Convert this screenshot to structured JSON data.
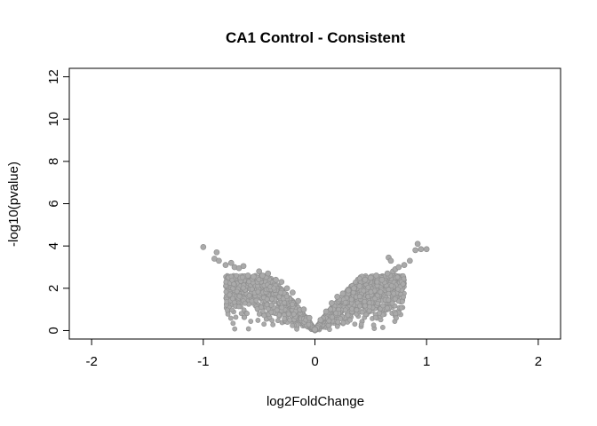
{
  "chart_data": {
    "type": "scatter",
    "title": "CA1 Control - Consistent",
    "xlabel": "log2FoldChange",
    "ylabel": "-log10(pvalue)",
    "xlim": [
      -2.2,
      2.2
    ],
    "ylim": [
      -0.4,
      12.4
    ],
    "xticks": [
      -2,
      -1,
      0,
      1,
      2
    ],
    "yticks": [
      0,
      2,
      4,
      6,
      8,
      10,
      12
    ],
    "xtick_labels": [
      "-2",
      "-1",
      "0",
      "1",
      "2"
    ],
    "ytick_labels": [
      "0",
      "2",
      "4",
      "6",
      "8",
      "10",
      "12"
    ],
    "grid": false,
    "point_color": "#aaaaaa",
    "point_stroke": "#8f8f8f",
    "series": [
      {
        "points": [
          [
            -1.0,
            3.95
          ],
          [
            -0.88,
            3.7
          ],
          [
            -0.9,
            3.4
          ],
          [
            -0.86,
            3.3
          ],
          [
            -0.8,
            3.1
          ],
          [
            -0.75,
            3.2
          ],
          [
            -0.72,
            3.0
          ],
          [
            -0.68,
            2.95
          ],
          [
            -0.64,
            3.05
          ],
          [
            -0.6,
            2.6
          ],
          [
            -0.55,
            2.55
          ],
          [
            -0.5,
            2.8
          ],
          [
            -0.47,
            2.6
          ],
          [
            -0.42,
            2.7
          ],
          [
            -0.35,
            2.4
          ],
          [
            -0.3,
            2.3
          ],
          [
            -0.25,
            2.0
          ],
          [
            -0.2,
            1.8
          ],
          [
            -0.15,
            1.4
          ],
          [
            -0.1,
            1.0
          ],
          [
            -0.05,
            0.6
          ],
          [
            0.0,
            0.05
          ],
          [
            0.05,
            0.5
          ],
          [
            0.1,
            0.9
          ],
          [
            0.15,
            1.3
          ],
          [
            0.2,
            1.6
          ],
          [
            0.25,
            1.75
          ],
          [
            0.3,
            1.9
          ],
          [
            0.35,
            2.0
          ],
          [
            0.4,
            2.1
          ],
          [
            0.45,
            2.4
          ],
          [
            0.5,
            2.5
          ],
          [
            0.55,
            2.6
          ],
          [
            0.6,
            2.4
          ],
          [
            0.65,
            2.7
          ],
          [
            0.66,
            3.45
          ],
          [
            0.68,
            3.3
          ],
          [
            0.7,
            2.8
          ],
          [
            0.72,
            2.9
          ],
          [
            0.75,
            3.0
          ],
          [
            0.8,
            3.1
          ],
          [
            0.85,
            3.3
          ],
          [
            0.9,
            3.8
          ],
          [
            0.92,
            4.1
          ],
          [
            0.95,
            3.85
          ],
          [
            1.0,
            3.85
          ]
        ]
      }
    ]
  }
}
